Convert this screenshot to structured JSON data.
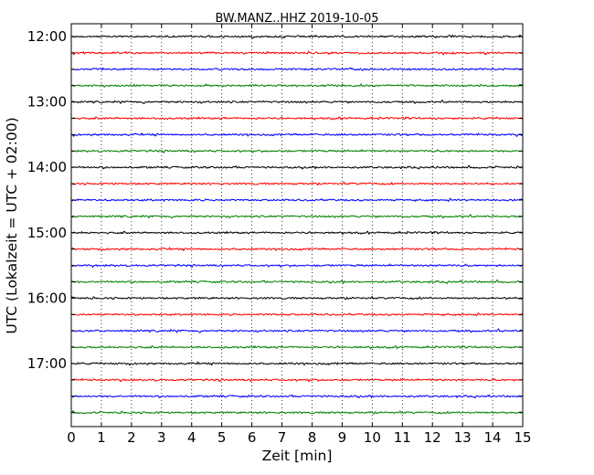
{
  "chart_data": {
    "type": "line",
    "title": "BW.MANZ..HHZ 2019-10-05",
    "xlabel": "Zeit  [min]",
    "ylabel": "UTC (Lokalzeit = UTC + 02:00)",
    "xlim": [
      0,
      15
    ],
    "x_ticks": [
      0,
      1,
      2,
      3,
      4,
      5,
      6,
      7,
      8,
      9,
      10,
      11,
      12,
      13,
      14,
      15
    ],
    "y_tick_labels": [
      "12:00",
      "13:00",
      "14:00",
      "15:00",
      "16:00",
      "17:00"
    ],
    "grid": "vertical dotted",
    "colors": [
      "#000000",
      "#ff0000",
      "#0000ff",
      "#008000"
    ],
    "traces": [
      {
        "start": "12:00",
        "color": "#000000"
      },
      {
        "start": "12:15",
        "color": "#ff0000"
      },
      {
        "start": "12:30",
        "color": "#0000ff"
      },
      {
        "start": "12:45",
        "color": "#008000"
      },
      {
        "start": "13:00",
        "color": "#000000"
      },
      {
        "start": "13:15",
        "color": "#ff0000"
      },
      {
        "start": "13:30",
        "color": "#0000ff"
      },
      {
        "start": "13:45",
        "color": "#008000"
      },
      {
        "start": "14:00",
        "color": "#000000"
      },
      {
        "start": "14:15",
        "color": "#ff0000"
      },
      {
        "start": "14:30",
        "color": "#0000ff"
      },
      {
        "start": "14:45",
        "color": "#008000"
      },
      {
        "start": "15:00",
        "color": "#000000"
      },
      {
        "start": "15:15",
        "color": "#ff0000"
      },
      {
        "start": "15:30",
        "color": "#0000ff"
      },
      {
        "start": "15:45",
        "color": "#008000"
      },
      {
        "start": "16:00",
        "color": "#000000"
      },
      {
        "start": "16:15",
        "color": "#ff0000"
      },
      {
        "start": "16:30",
        "color": "#0000ff"
      },
      {
        "start": "16:45",
        "color": "#008000"
      },
      {
        "start": "17:00",
        "color": "#000000"
      },
      {
        "start": "17:15",
        "color": "#ff0000"
      },
      {
        "start": "17:30",
        "color": "#0000ff"
      },
      {
        "start": "17:45",
        "color": "#008000"
      }
    ]
  }
}
